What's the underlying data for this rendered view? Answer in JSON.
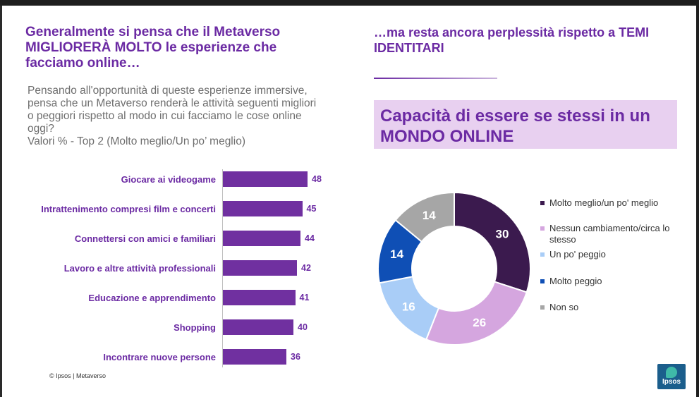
{
  "left_title": "Generalmente si pensa che il Metaverso MIGLIORERÀ MOLTO le esperienze che facciamo online…",
  "subtitle": "Pensando all'opportunità di queste esperienze immersive, pensa che un Metaverso renderà le attività seguenti migliori o peggiori rispetto al modo in cui facciamo le cose online oggi?\nValori % - Top 2 (Molto meglio/Un po’ meglio)",
  "right_title": "…ma resta ancora perplessità rispetto a TEMI IDENTITARI",
  "box_title": "Capacità di essere se stessi in un MONDO ONLINE",
  "footer": "© Ipsos | Metaverso",
  "logo_text": "Ipsos",
  "colors": {
    "accent": "#6b2aa3",
    "bar": "#7030a0"
  },
  "chart_data": [
    {
      "type": "bar",
      "orientation": "horizontal",
      "categories": [
        "Giocare ai videogame",
        "Intrattenimento compresi film e concerti",
        "Connettersi con amici e familiari",
        "Lavoro e altre attività professionali",
        "Educazione e apprendimento",
        "Shopping",
        "Incontrare nuove persone"
      ],
      "values": [
        48,
        45,
        44,
        42,
        41,
        40,
        36
      ],
      "value_labels": [
        "48",
        "45",
        "44",
        "42",
        "41",
        "40",
        "36"
      ],
      "xlim": [
        0,
        48
      ],
      "grid": false
    },
    {
      "type": "pie",
      "donut": true,
      "categories": [
        "Molto meglio/un po' meglio",
        "Nessun cambiamento/circa lo stesso",
        "Un po' peggio",
        "Molto peggio",
        "Non so"
      ],
      "values": [
        30,
        26,
        16,
        14,
        14
      ],
      "value_labels": [
        "30",
        "26",
        "16",
        "14",
        "14"
      ],
      "colors": [
        "#3b1a4e",
        "#d5a6df",
        "#a9cdf7",
        "#0f4fb5",
        "#a6a6a6"
      ],
      "label_colors": [
        "#ffffff",
        "#ffffff",
        "#ffffff",
        "#ffffff",
        "#ffffff"
      ],
      "legend_position": "right"
    }
  ]
}
